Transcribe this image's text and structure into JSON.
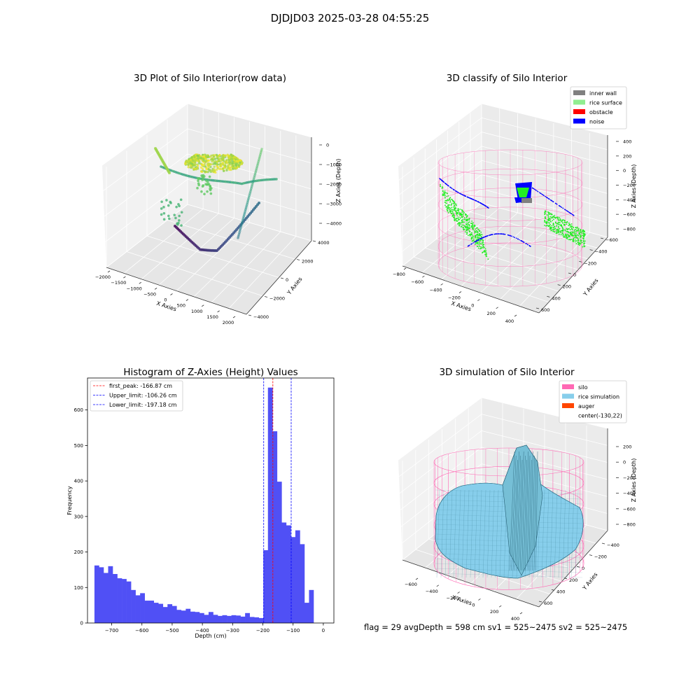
{
  "figure": {
    "suptitle": "DJDJD03 2025-03-28 04:55:25",
    "footer": "flag = 29  avgDepth = 598 cm  sv1 = 525~2475  sv2 = 525~2475"
  },
  "colors": {
    "histogram_bar": "#5050f5",
    "peak_line": "#ff0000",
    "limit_lines": "#0000ff",
    "inner_wall": "#808080",
    "rice_surface": "#90ee90",
    "obstacle": "#ff0000",
    "noise": "#0000ff",
    "silo": "#ff69b4",
    "rice_simulation": "#87ceeb",
    "auger": "#ff4500"
  },
  "chart_data": [
    {
      "type": "scatter",
      "title": "3D Plot of Silo Interior(row data)",
      "xlabel": "X Axies",
      "ylabel": "Y Axies",
      "zlabel": "Z Axies (Depth)",
      "x_ticks": [
        "−2000",
        "−1500",
        "−1000",
        "−500",
        "0",
        "500",
        "1000",
        "1500",
        "2000"
      ],
      "y_ticks": [
        "4000",
        "2000",
        "0",
        "−2000",
        "−4000"
      ],
      "z_ticks": [
        "0",
        "−1000",
        "−2000",
        "−3000",
        "−4000"
      ],
      "xlim": [
        -2000,
        2000
      ],
      "ylim": [
        -4000,
        4000
      ],
      "zlim": [
        -4500,
        0
      ],
      "colormap": "viridis"
    },
    {
      "type": "scatter",
      "title": "3D classify of Silo Interior",
      "xlabel": "X Axies",
      "ylabel": "Y Axies",
      "zlabel": "Z Axies (Depth)",
      "x_ticks": [
        "−800",
        "−600",
        "−400",
        "−200",
        "0",
        "200",
        "400"
      ],
      "y_ticks": [
        "600",
        "400",
        "200",
        "0",
        "−200",
        "−400",
        "−600"
      ],
      "z_ticks": [
        "400",
        "200",
        "0",
        "−200",
        "−400",
        "−600",
        "−800"
      ],
      "legend": [
        "inner wall",
        "rice surface",
        "obstacle",
        "noise"
      ],
      "legend_position": "top-right"
    },
    {
      "type": "bar",
      "title": "Histogram of Z-Axies (Height) Values",
      "xlabel": "Depth (cm)",
      "ylabel": "Frequency",
      "xlim": [
        -780,
        35
      ],
      "ylim": [
        0,
        690
      ],
      "x_ticks": [
        -700,
        -600,
        -500,
        -400,
        -300,
        -200,
        -100,
        0
      ],
      "x_tick_labels": [
        "−700",
        "−600",
        "−500",
        "−400",
        "−300",
        "−200",
        "−100",
        "0"
      ],
      "y_ticks": [
        0,
        100,
        200,
        300,
        400,
        500,
        600
      ],
      "y_tick_labels": [
        "0",
        "100",
        "200",
        "300",
        "400",
        "500",
        "600"
      ],
      "bin_start": -757,
      "bin_width": 15.1,
      "values": [
        162,
        157,
        141,
        160,
        138,
        126,
        124,
        117,
        93,
        78,
        84,
        63,
        63,
        57,
        54,
        45,
        53,
        48,
        37,
        35,
        40,
        32,
        31,
        28,
        23,
        31,
        23,
        20,
        22,
        20,
        22,
        21,
        18,
        28,
        17,
        16,
        14,
        205,
        663,
        540,
        398,
        283,
        275,
        242,
        261,
        222,
        57,
        93
      ],
      "vlines": [
        {
          "label": "first_peak: -166.87 cm",
          "x": -166.87,
          "color": "#ff0000"
        },
        {
          "label": "Upper_limit: -106.26 cm",
          "x": -106.26,
          "color": "#0000ff"
        },
        {
          "label": "Lower_limit: -197.18 cm",
          "x": -197.18,
          "color": "#0000ff"
        }
      ],
      "legend_position": "top-left"
    },
    {
      "type": "area",
      "title": "3D simulation of Silo Interior",
      "xlabel": "X Axies",
      "ylabel": "Y Axies",
      "zlabel": "Z Axies (Depth)",
      "x_ticks": [
        "−600",
        "−400",
        "−200",
        "0",
        "200",
        "400"
      ],
      "y_ticks": [
        "600",
        "400",
        "200",
        "0",
        "−200",
        "−400"
      ],
      "z_ticks": [
        "200",
        "0",
        "−200",
        "−400",
        "−600",
        "−800"
      ],
      "legend": [
        "silo",
        "rice simulation",
        "auger",
        "center(-130,22)"
      ],
      "legend_position": "top-right"
    }
  ]
}
